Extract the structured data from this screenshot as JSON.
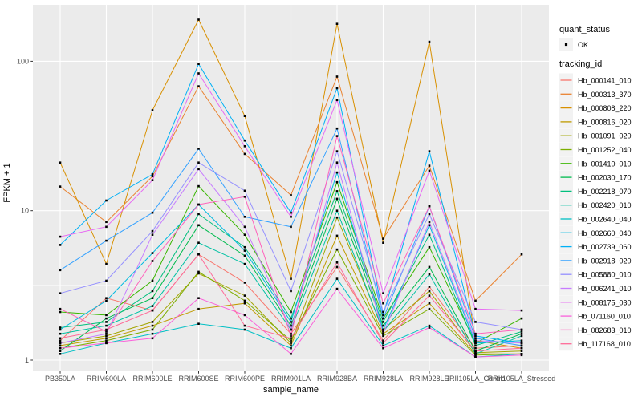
{
  "figure": {
    "background": "#FFFFFF",
    "panel_background": "#EBEBEB",
    "grid_color": "#FFFFFF",
    "tick_color": "#333333",
    "axis_text_color": "#4D4D4D",
    "point_color": "#000000",
    "legend_key_background": "#F2F2F2"
  },
  "chart_data": {
    "type": "line",
    "title": "",
    "xlabel": "sample_name",
    "ylabel": "FPKM + 1",
    "y_scale": "log10",
    "grid": true,
    "legend_position": "right",
    "y_ticks": [
      1,
      10,
      100
    ],
    "y_tick_labels": [
      "1",
      "10",
      "100"
    ],
    "y_minor_gridlines": [
      3.162,
      31.623
    ],
    "ylim": [
      0.85,
      240
    ],
    "categories": [
      "PB350LA",
      "RRIM600LA",
      "RRIM600LE",
      "RRIM600SE",
      "RRIM600PE",
      "RRIM901LA",
      "RRIM928BA",
      "RRIM928LA",
      "RRIM928LE",
      "RRII105LA_Control",
      "RRII105LA_Stressed"
    ],
    "legend": {
      "quant_status": {
        "title": "quant_status",
        "items": [
          {
            "label": "OK",
            "symbol": "point"
          }
        ]
      },
      "tracking_id": {
        "title": "tracking_id"
      }
    },
    "series": [
      {
        "name": "Hb_000141_010",
        "color": "#F8766D",
        "values": [
          1.35,
          2.6,
          2.15,
          5.1,
          3.3,
          1.5,
          4.2,
          1.35,
          3.1,
          1.2,
          1.25
        ]
      },
      {
        "name": "Hb_000313_370",
        "color": "#EA8331",
        "values": [
          14.5,
          8.4,
          17,
          68,
          24,
          12.7,
          79,
          6.5,
          20,
          2.5,
          5.1
        ]
      },
      {
        "name": "Hb_000808_220",
        "color": "#D89000",
        "values": [
          21,
          4.4,
          47,
          190,
          43,
          3.5,
          178,
          6.1,
          135,
          1.35,
          1.2
        ]
      },
      {
        "name": "Hb_000816_020",
        "color": "#C09B00",
        "values": [
          1.25,
          1.4,
          1.7,
          2.2,
          2.4,
          1.25,
          6.8,
          1.5,
          2.4,
          1.1,
          1.1
        ]
      },
      {
        "name": "Hb_001091_020",
        "color": "#A3A500",
        "values": [
          1.3,
          1.45,
          1.8,
          3.8,
          2.7,
          1.3,
          9,
          1.6,
          2.9,
          1.12,
          1.15
        ]
      },
      {
        "name": "Hb_001252_040",
        "color": "#7CAE00",
        "values": [
          1.2,
          1.35,
          1.6,
          3.9,
          2.5,
          1.35,
          5.5,
          1.45,
          2.2,
          1.08,
          1.1
        ]
      },
      {
        "name": "Hb_001410_010",
        "color": "#39B600",
        "values": [
          2.1,
          2.0,
          3.4,
          14.6,
          6.9,
          2.1,
          15.5,
          1.9,
          5.7,
          1.3,
          1.9
        ]
      },
      {
        "name": "Hb_002030_170",
        "color": "#00BB4E",
        "values": [
          1.15,
          1.9,
          2.6,
          8,
          5,
          1.7,
          12,
          1.7,
          4.2,
          1.15,
          1.5
        ]
      },
      {
        "name": "Hb_002218_070",
        "color": "#00BF7D",
        "values": [
          1.65,
          1.8,
          2.9,
          9.5,
          5.7,
          1.9,
          13.5,
          1.8,
          6.9,
          1.25,
          1.55
        ]
      },
      {
        "name": "Hb_002420_010",
        "color": "#00C1A3",
        "values": [
          1.5,
          1.7,
          2.3,
          6.1,
          4.4,
          1.6,
          10,
          1.55,
          3.75,
          1.1,
          1.45
        ]
      },
      {
        "name": "Hb_002640_040",
        "color": "#00BFC4",
        "values": [
          1.1,
          1.3,
          1.5,
          1.75,
          1.6,
          1.2,
          3.5,
          1.25,
          1.7,
          1.05,
          1.1
        ]
      },
      {
        "name": "Hb_002660_040",
        "color": "#00BAE0",
        "values": [
          1.6,
          2.5,
          5.2,
          11,
          5.4,
          1.8,
          18,
          1.6,
          8,
          1.3,
          1.35
        ]
      },
      {
        "name": "Hb_002739_060",
        "color": "#00B0F6",
        "values": [
          5.9,
          11.7,
          17.5,
          96,
          29.5,
          9.7,
          66,
          2.0,
          25,
          1.45,
          1.3
        ]
      },
      {
        "name": "Hb_002918_020",
        "color": "#35A2FF",
        "values": [
          4.0,
          6.3,
          9.7,
          26,
          9.1,
          7.8,
          35.5,
          1.9,
          10.7,
          1.4,
          1.25
        ]
      },
      {
        "name": "Hb_005880_010",
        "color": "#9590FF",
        "values": [
          2.8,
          3.4,
          7.3,
          21,
          13.6,
          2.9,
          25,
          2.1,
          9.5,
          1.8,
          1.6
        ]
      },
      {
        "name": "Hb_006241_010",
        "color": "#C77CFF",
        "values": [
          1.3,
          1.5,
          6.9,
          19,
          7.8,
          1.6,
          21,
          1.5,
          8.4,
          1.35,
          1.3
        ]
      },
      {
        "name": "Hb_008175_030",
        "color": "#E76BF3",
        "values": [
          6.7,
          7.8,
          16,
          83,
          27,
          9.1,
          55,
          2.8,
          18.5,
          2.2,
          2.15
        ]
      },
      {
        "name": "Hb_071160_010",
        "color": "#FA62DB",
        "values": [
          1.2,
          1.3,
          1.4,
          2.6,
          2.0,
          1.1,
          3.0,
          1.2,
          1.65,
          1.05,
          1.08
        ]
      },
      {
        "name": "Hb_082683_010",
        "color": "#FF62BC",
        "values": [
          2.2,
          1.55,
          4.6,
          11,
          12.4,
          1.45,
          31.6,
          2.4,
          10.7,
          1.5,
          1.6
        ]
      },
      {
        "name": "Hb_117168_010",
        "color": "#FF6A98",
        "values": [
          1.4,
          1.6,
          2.15,
          5.1,
          1.7,
          1.4,
          4.5,
          1.3,
          2.7,
          1.15,
          1.2
        ]
      }
    ]
  }
}
